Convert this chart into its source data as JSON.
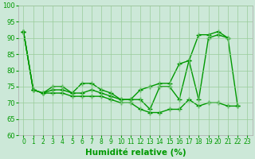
{
  "x": [
    0,
    1,
    2,
    3,
    4,
    5,
    6,
    7,
    8,
    9,
    10,
    11,
    12,
    13,
    14,
    15,
    16,
    17,
    18,
    19,
    20,
    21,
    22,
    23
  ],
  "line_top": [
    92,
    74,
    73,
    75,
    75,
    73,
    76,
    76,
    74,
    73,
    71,
    71,
    74,
    75,
    76,
    76,
    82,
    83,
    91,
    91,
    92,
    90,
    null,
    null
  ],
  "line_mid": [
    92,
    74,
    73,
    74,
    74,
    73,
    73,
    74,
    73,
    72,
    71,
    71,
    71,
    68,
    75,
    75,
    71,
    83,
    71,
    90,
    91,
    90,
    69,
    null
  ],
  "line_bot": [
    92,
    74,
    73,
    73,
    73,
    72,
    72,
    72,
    72,
    71,
    70,
    70,
    68,
    67,
    67,
    68,
    68,
    71,
    69,
    70,
    70,
    69,
    69,
    null
  ],
  "line_color": "#009900",
  "marker": "+",
  "marker_size": 4,
  "marker_lw": 1.0,
  "linewidth": 1.0,
  "xlabel": "Humidité relative (%)",
  "ylim": [
    60,
    100
  ],
  "yticks": [
    60,
    65,
    70,
    75,
    80,
    85,
    90,
    95,
    100
  ],
  "xticks": [
    0,
    1,
    2,
    3,
    4,
    5,
    6,
    7,
    8,
    9,
    10,
    11,
    12,
    13,
    14,
    15,
    16,
    17,
    18,
    19,
    20,
    21,
    22,
    23
  ],
  "bg_color": "#cce8d8",
  "grid_color": "#99cc99",
  "tick_fontsize": 5.5,
  "xlabel_fontsize": 7.5
}
